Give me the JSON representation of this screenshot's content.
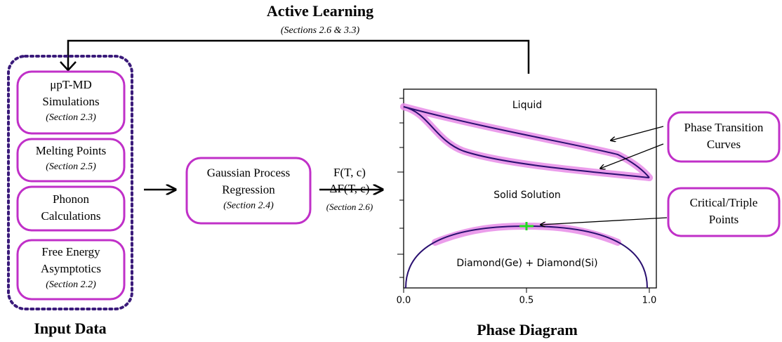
{
  "feedback": {
    "title": "Active Learning",
    "subtitle": "(Sections 2.6 & 3.3)"
  },
  "input_data": {
    "label": "Input Data",
    "boxes": [
      {
        "lines": [
          "μpT-MD",
          "Simulations"
        ],
        "section": "(Section 2.3)"
      },
      {
        "lines": [
          "Melting Points"
        ],
        "section": "(Section 2.5)"
      },
      {
        "lines": [
          "Phonon",
          "Calculations"
        ]
      },
      {
        "lines": [
          "Free Energy",
          "Asymptotics"
        ],
        "section": "(Section 2.2)"
      }
    ]
  },
  "gpr": {
    "lines": [
      "Gaussian Process",
      "Regression"
    ],
    "section": "(Section 2.4)"
  },
  "transfer": {
    "lines": [
      "F(T, c)",
      "ΔF(T, c)"
    ],
    "section": "(Section 2.6)"
  },
  "phase_diagram": {
    "label": "Phase Diagram",
    "regions": [
      "Liquid",
      "Solid Solution",
      "Diamond(Ge) + Diamond(Si)"
    ],
    "xticks": [
      "0.0",
      "0.5",
      "1.0"
    ],
    "callouts": [
      {
        "lines": [
          "Phase Transition",
          "Curves"
        ]
      },
      {
        "lines": [
          "Critical/Triple",
          "Points"
        ]
      }
    ]
  }
}
